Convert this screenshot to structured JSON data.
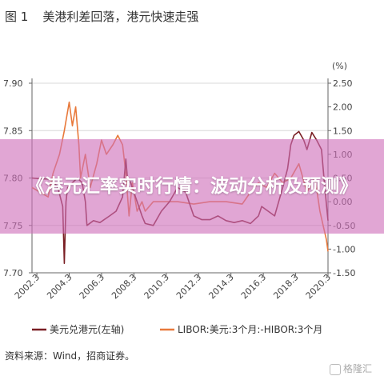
{
  "figure": {
    "number": "图 1",
    "title": "美港利差回落，港元快速走强",
    "source": "资料来源：Wind，招商证券。"
  },
  "overlay": {
    "headline": "《港元汇率实时行情：波动分析及预测》"
  },
  "watermark": {
    "text": "格隆汇"
  },
  "chart_data": {
    "type": "line",
    "right_unit": "(%)",
    "x_ticks": [
      "2002.3",
      "2004.3",
      "2006.3",
      "2008.3",
      "2010.3",
      "2012.3",
      "2014.3",
      "2016.3",
      "2018.3",
      "2020.3"
    ],
    "x_range": [
      2002.0,
      2020.3
    ],
    "left_axis": {
      "ylim": [
        7.7,
        7.9
      ],
      "ticks": [
        "7.70",
        "7.75",
        "7.80",
        "7.85",
        "7.90"
      ]
    },
    "right_axis": {
      "ylim": [
        -1.5,
        2.5
      ],
      "ticks": [
        "-1.50",
        "-1.00",
        "-0.50",
        "0.00",
        "0.50",
        "1.00",
        "1.50",
        "2.00",
        "2.50"
      ]
    },
    "legend": [
      "美元兑港元(左轴)",
      "LIBOR:美元:3个月:-HIBOR:3个月"
    ],
    "colors": {
      "usdhkd": "#7a1f24",
      "spread": "#e8793b",
      "grid": "#d8d8d8"
    },
    "series": [
      {
        "name": "美元兑港元(左轴)",
        "axis": "left",
        "x": [
          2002.0,
          2002.6,
          2003.2,
          2003.6,
          2003.9,
          2004.0,
          2004.1,
          2004.2,
          2004.5,
          2004.8,
          2005.1,
          2005.3,
          2005.4,
          2005.8,
          2006.2,
          2006.8,
          2007.2,
          2007.6,
          2007.8,
          2007.9,
          2008.1,
          2008.4,
          2008.8,
          2009.0,
          2009.5,
          2010.0,
          2010.5,
          2011.0,
          2011.5,
          2012.0,
          2012.5,
          2013.0,
          2013.5,
          2014.0,
          2014.5,
          2015.0,
          2015.5,
          2016.0,
          2016.2,
          2016.6,
          2017.0,
          2017.5,
          2017.8,
          2018.0,
          2018.2,
          2018.5,
          2018.8,
          2019.0,
          2019.3,
          2019.6,
          2019.9,
          2020.1,
          2020.3
        ],
        "values": [
          7.8,
          7.799,
          7.799,
          7.79,
          7.77,
          7.71,
          7.775,
          7.79,
          7.795,
          7.8,
          7.795,
          7.775,
          7.75,
          7.755,
          7.753,
          7.76,
          7.765,
          7.78,
          7.82,
          7.8,
          7.795,
          7.78,
          7.76,
          7.752,
          7.75,
          7.765,
          7.775,
          7.79,
          7.785,
          7.76,
          7.756,
          7.756,
          7.76,
          7.755,
          7.753,
          7.755,
          7.752,
          7.76,
          7.77,
          7.765,
          7.76,
          7.79,
          7.81,
          7.835,
          7.845,
          7.849,
          7.84,
          7.83,
          7.848,
          7.84,
          7.83,
          7.79,
          7.755
        ]
      },
      {
        "name": "LIBOR:美元:3个月:-HIBOR:3个月",
        "axis": "right",
        "x": [
          2002.0,
          2002.5,
          2003.0,
          2003.3,
          2003.7,
          2004.0,
          2004.3,
          2004.5,
          2004.7,
          2004.9,
          2005.0,
          2005.3,
          2005.6,
          2006.0,
          2006.3,
          2006.6,
          2007.0,
          2007.3,
          2007.6,
          2007.8,
          2008.0,
          2008.2,
          2008.5,
          2008.8,
          2009.0,
          2009.5,
          2010.0,
          2011.0,
          2012.0,
          2013.0,
          2014.0,
          2015.0,
          2015.5,
          2016.0,
          2016.5,
          2017.0,
          2017.5,
          2018.0,
          2018.5,
          2019.0,
          2019.5,
          2019.8,
          2020.0,
          2020.2,
          2020.3
        ],
        "values": [
          0.3,
          0.2,
          0.1,
          0.6,
          1.0,
          1.5,
          2.1,
          1.6,
          2.0,
          1.2,
          0.5,
          1.0,
          0.3,
          0.8,
          1.3,
          1.0,
          1.2,
          1.4,
          1.2,
          0.6,
          -0.3,
          0.4,
          -0.2,
          0.0,
          -0.2,
          0.0,
          0.0,
          0.0,
          -0.05,
          0.0,
          0.0,
          -0.05,
          0.2,
          0.4,
          0.3,
          0.6,
          0.4,
          0.5,
          0.8,
          0.2,
          0.5,
          -0.2,
          -0.5,
          -0.8,
          -1.05
        ]
      }
    ]
  }
}
